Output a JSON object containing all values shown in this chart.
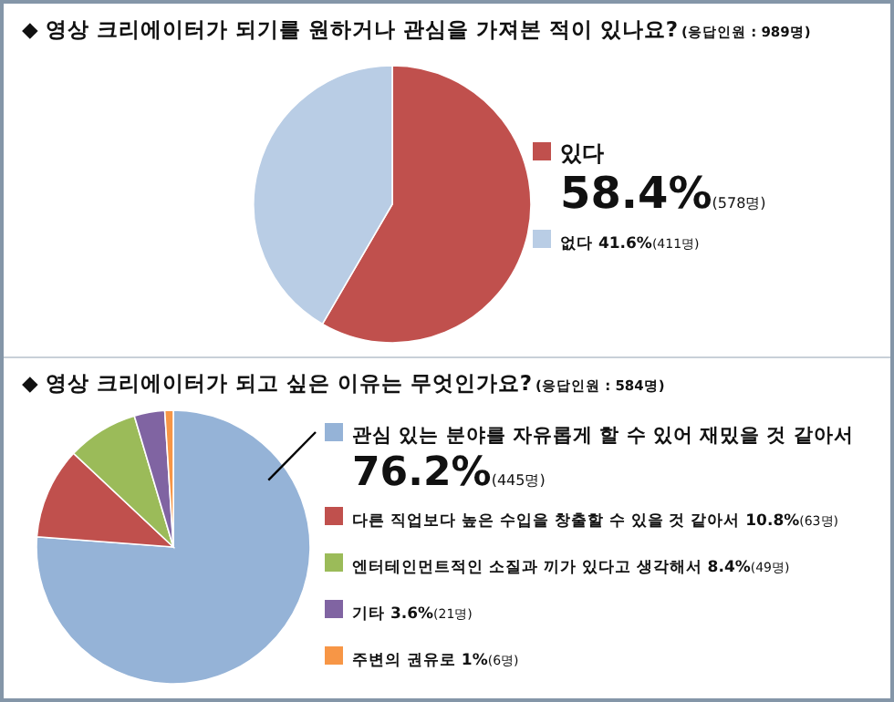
{
  "chart_data": [
    {
      "type": "pie",
      "title": "◆ 영상 크리에이터가 되기를 원하거나 관심을 가져본 적이 있나요?",
      "subtitle": "(응답인원 : 989명)",
      "categories": [
        "있다",
        "없다"
      ],
      "values": [
        58.4,
        41.6
      ],
      "colors": [
        "#c0504d",
        "#b9cde5"
      ],
      "value_labels": [
        "58.4%(578명)",
        "41.6%(411명)"
      ],
      "legend": "right"
    },
    {
      "type": "pie",
      "title": "◆ 영상 크리에이터가 되고 싶은 이유는 무엇인가요?",
      "subtitle": "(응답인원 : 584명)",
      "categories": [
        "관심 있는 분야를 자유롭게 할 수 있어 재밌을 것 같아서",
        "다른 직업보다 높은 수입을 창출할 수 있을 것 같아서",
        "엔터테인먼트적인 소질과 끼가 있다고 생각해서",
        "기타",
        "주변의 권유로"
      ],
      "values": [
        76.2,
        10.8,
        8.4,
        3.6,
        1
      ],
      "colors": [
        "#95b3d7",
        "#c0504d",
        "#9bbb59",
        "#8064a2",
        "#f79646"
      ],
      "value_labels": [
        "76.2%(445명)",
        "10.8%(63명)",
        "8.4%(49명)",
        "3.6%(21명)",
        "1%(6명)"
      ],
      "legend": "right"
    }
  ]
}
